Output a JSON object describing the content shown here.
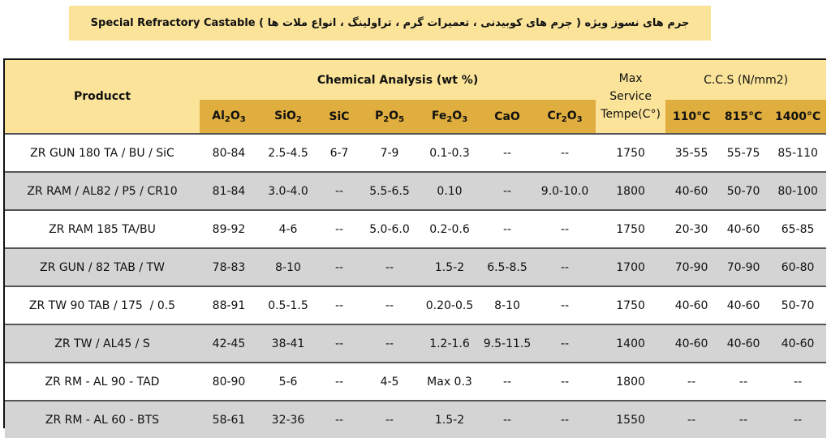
{
  "title": "جرم های نسوز ویژه ( جرم های کوبیدنی ، تعمیرات گرم ، تراولینگ ، انواع ملات ها ) Special Refractory Castable",
  "header": {
    "product": "Producct",
    "chemical": "Chemical Analysis (wt %)",
    "max_service_1": "Max",
    "max_service_2": "Service",
    "max_service_3": "Tempe(C°)",
    "ccs": "C.C.S (N/mm2)",
    "cols": {
      "al2o3_a": "Al",
      "al2o3_b": "2",
      "al2o3_c": "O",
      "al2o3_d": "3",
      "sio2_a": "SiO",
      "sio2_b": "2",
      "sic": "SiC",
      "p2o5_a": "P",
      "p2o5_b": "2",
      "p2o5_c": "O",
      "p2o5_d": "5",
      "fe2o3_a": "Fe",
      "fe2o3_b": "2",
      "fe2o3_c": "O",
      "fe2o3_d": "3",
      "cao": "CaO",
      "cr2o3_a": "Cr",
      "cr2o3_b": "2",
      "cr2o3_c": "O",
      "cr2o3_d": "3",
      "t110": "110°C",
      "t815": "815°C",
      "t1400": "1400°C"
    }
  },
  "rows": [
    {
      "product": "ZR GUN 180 TA / BU / SiC",
      "al2o3": "80-84",
      "sio2": "2.5-4.5",
      "sic": "6-7",
      "p2o5": "7-9",
      "fe2o3": "0.1-0.3",
      "cao": "--",
      "cr2o3": "--",
      "max": "1750",
      "c110": "35-55",
      "c815": "55-75",
      "c1400": "85-110"
    },
    {
      "product": "ZR RAM / AL82 / P5 / CR10",
      "al2o3": "81-84",
      "sio2": "3.0-4.0",
      "sic": "--",
      "p2o5": "5.5-6.5",
      "fe2o3": "0.10",
      "cao": "--",
      "cr2o3": "9.0-10.0",
      "max": "1800",
      "c110": "40-60",
      "c815": "50-70",
      "c1400": "80-100"
    },
    {
      "product": "ZR RAM 185 TA/BU",
      "al2o3": "89-92",
      "sio2": "4-6",
      "sic": "--",
      "p2o5": "5.0-6.0",
      "fe2o3": "0.2-0.6",
      "cao": "--",
      "cr2o3": "--",
      "max": "1750",
      "c110": "20-30",
      "c815": "40-60",
      "c1400": "65-85"
    },
    {
      "product": "ZR GUN / 82 TAB / TW",
      "al2o3": "78-83",
      "sio2": "8-10",
      "sic": "--",
      "p2o5": "--",
      "fe2o3": "1.5-2",
      "cao": "6.5-8.5",
      "cr2o3": "--",
      "max": "1700",
      "c110": "70-90",
      "c815": "70-90",
      "c1400": "60-80"
    },
    {
      "product": "ZR TW 90 TAB / 175  / 0.5",
      "al2o3": "88-91",
      "sio2": "0.5-1.5",
      "sic": "--",
      "p2o5": "--",
      "fe2o3": "0.20-0.5",
      "cao": "8-10",
      "cr2o3": "--",
      "max": "1750",
      "c110": "40-60",
      "c815": "40-60",
      "c1400": "50-70"
    },
    {
      "product": "ZR TW / AL45 / S",
      "al2o3": "42-45",
      "sio2": "38-41",
      "sic": "--",
      "p2o5": "--",
      "fe2o3": "1.2-1.6",
      "cao": "9.5-11.5",
      "cr2o3": "--",
      "max": "1400",
      "c110": "40-60",
      "c815": "40-60",
      "c1400": "40-60"
    },
    {
      "product": "ZR RM - AL 90 - TAD",
      "al2o3": "80-90",
      "sio2": "5-6",
      "sic": "--",
      "p2o5": "4-5",
      "fe2o3": "Max 0.3",
      "cao": "--",
      "cr2o3": "--",
      "max": "1800",
      "c110": "--",
      "c815": "--",
      "c1400": "--"
    },
    {
      "product": "ZR RM - AL 60 - BTS",
      "al2o3": "58-61",
      "sio2": "32-36",
      "sic": "--",
      "p2o5": "--",
      "fe2o3": "1.5-2",
      "cao": "--",
      "cr2o3": "--",
      "max": "1550",
      "c110": "--",
      "c815": "--",
      "c1400": "--"
    }
  ]
}
